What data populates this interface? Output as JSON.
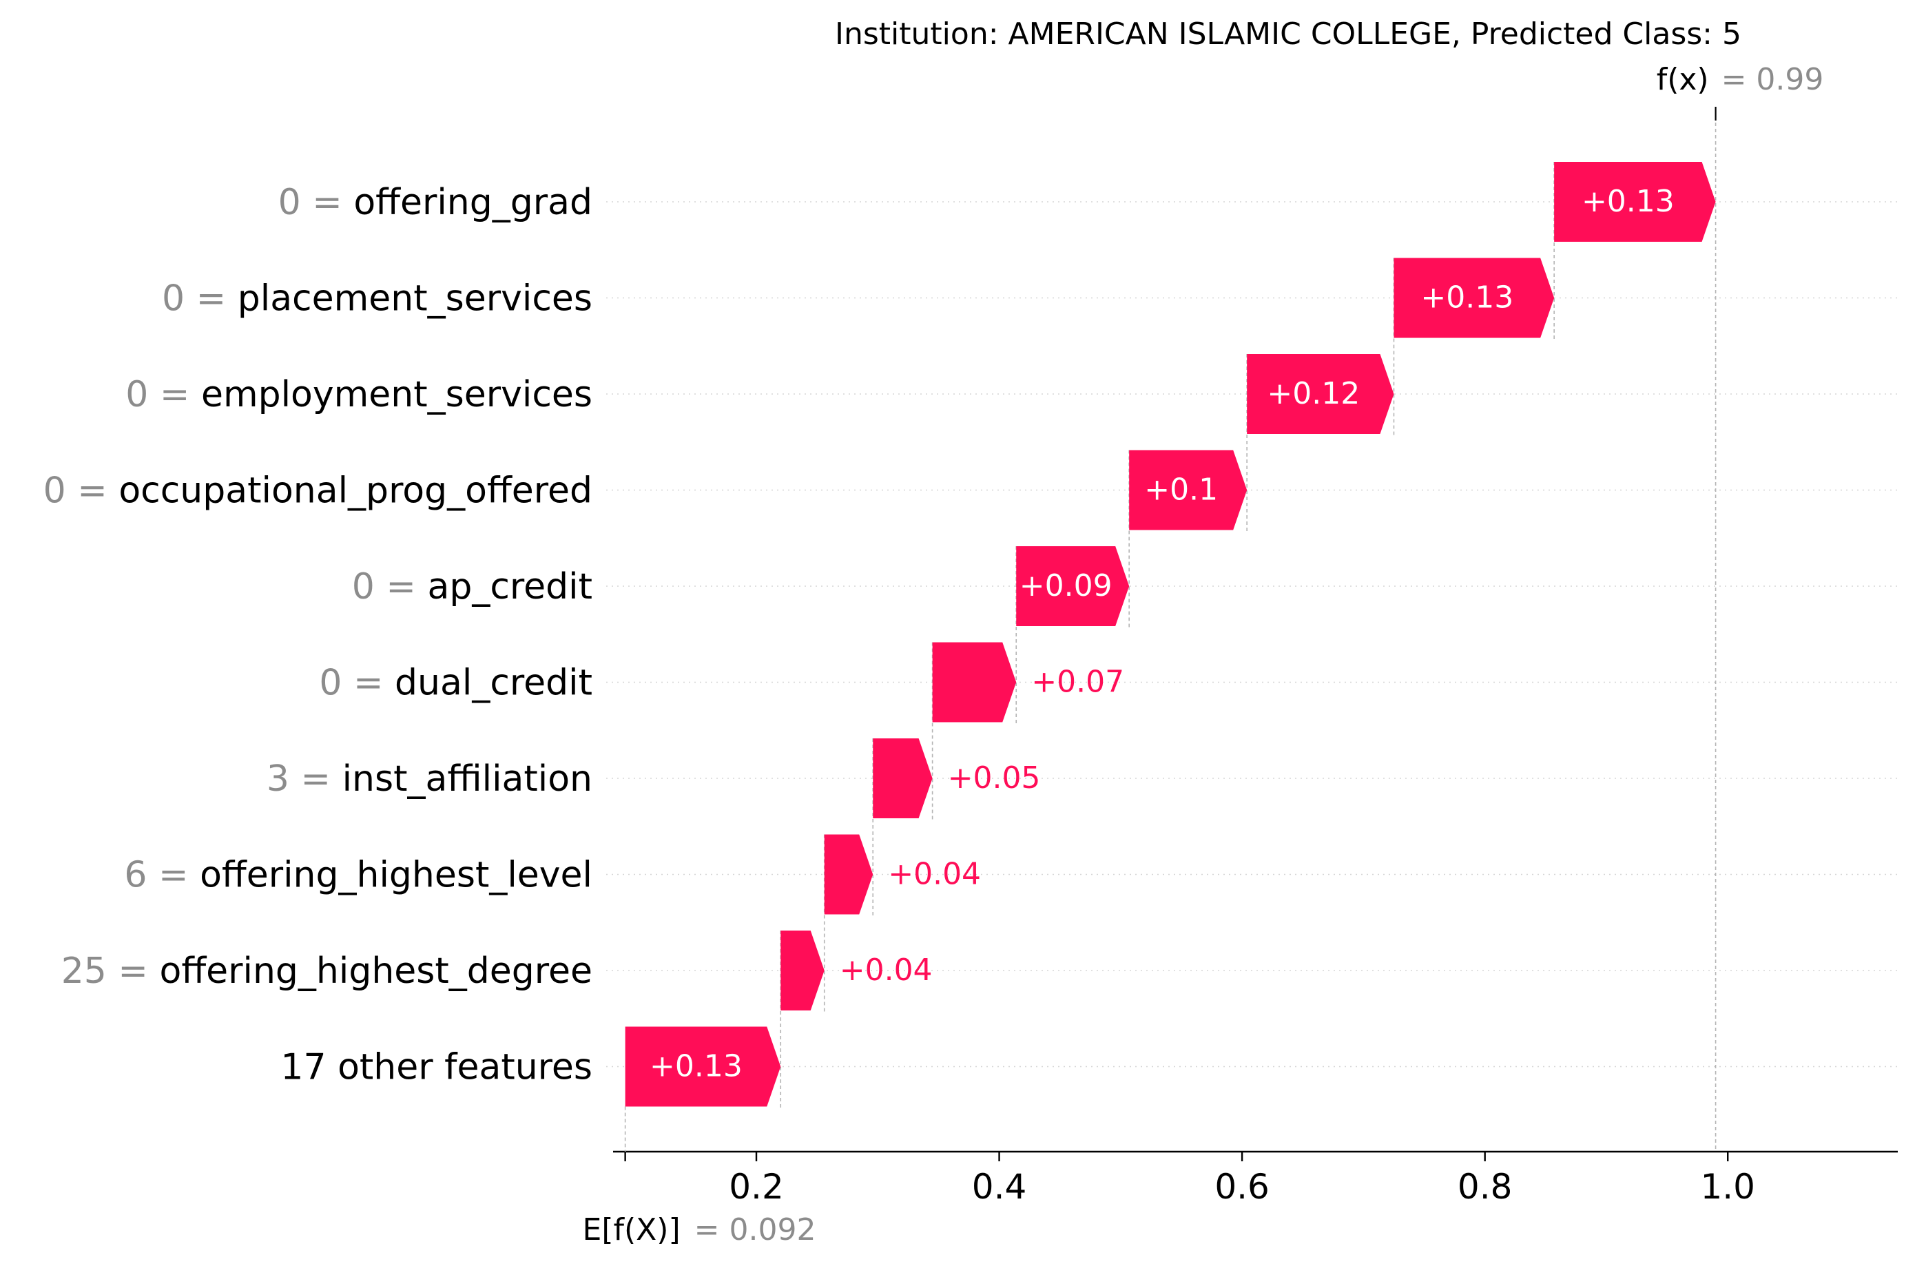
{
  "chart_data": {
    "type": "waterfall",
    "title": "Institution: AMERICAN ISLAMIC COLLEGE, Predicted Class: 5",
    "base_value": 0.092,
    "base_label": "E[f(X)]",
    "base_text": "= 0.092",
    "output_value": 0.99,
    "output_label": "f(x)",
    "output_text": "= 0.99",
    "xlim": [
      0.082,
      1.14
    ],
    "x_ticks": [
      0.2,
      0.4,
      0.6,
      0.8,
      1.0
    ],
    "x_tick_labels": [
      "0.2",
      "0.4",
      "0.6",
      "0.8",
      "1.0"
    ],
    "positive_color": "#ff0d57",
    "features": [
      {
        "value": "0",
        "name": "offering_grad",
        "contribution": 0.13,
        "label": "+0.13",
        "start": 0.857,
        "end": 0.99
      },
      {
        "value": "0",
        "name": "placement_services",
        "contribution": 0.13,
        "label": "+0.13",
        "start": 0.725,
        "end": 0.857
      },
      {
        "value": "0",
        "name": "employment_services",
        "contribution": 0.12,
        "label": "+0.12",
        "start": 0.604,
        "end": 0.725
      },
      {
        "value": "0",
        "name": "occupational_prog_offered",
        "contribution": 0.1,
        "label": "+0.1",
        "start": 0.507,
        "end": 0.604
      },
      {
        "value": "0",
        "name": "ap_credit",
        "contribution": 0.09,
        "label": "+0.09",
        "start": 0.414,
        "end": 0.507
      },
      {
        "value": "0",
        "name": "dual_credit",
        "contribution": 0.07,
        "label": "+0.07",
        "start": 0.345,
        "end": 0.414
      },
      {
        "value": "3",
        "name": "inst_affiliation",
        "contribution": 0.05,
        "label": "+0.05",
        "start": 0.296,
        "end": 0.345
      },
      {
        "value": "6",
        "name": "offering_highest_level",
        "contribution": 0.04,
        "label": "+0.04",
        "start": 0.256,
        "end": 0.296
      },
      {
        "value": "25",
        "name": "offering_highest_degree",
        "contribution": 0.04,
        "label": "+0.04",
        "start": 0.22,
        "end": 0.256
      },
      {
        "value": "",
        "name": "17 other features",
        "contribution": 0.13,
        "label": "+0.13",
        "start": 0.092,
        "end": 0.22
      }
    ]
  }
}
